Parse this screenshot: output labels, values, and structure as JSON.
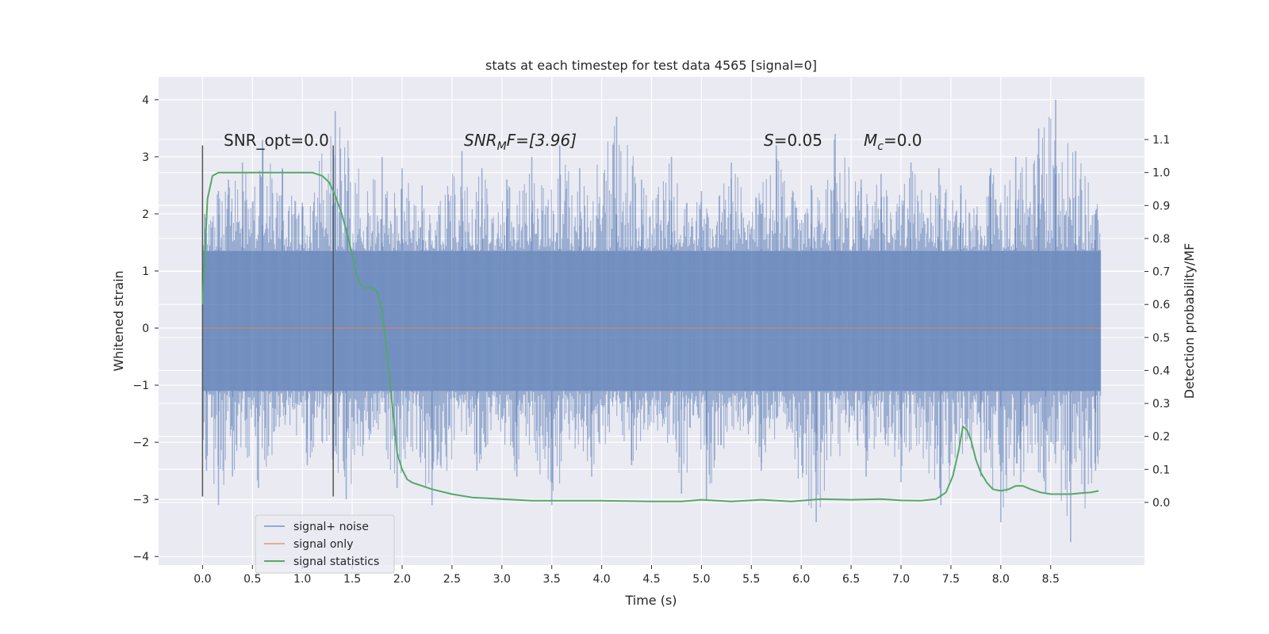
{
  "chart_data": {
    "type": "line",
    "title": "stats at each timestep for test data 4565 [signal=0]",
    "xlabel": "Time (s)",
    "ylabel": "Whitened strain",
    "y2label": "Detection probability/MF",
    "xlim": [
      -0.44,
      9.44
    ],
    "ylim": [
      -4.15,
      4.4
    ],
    "y2lim": [
      -0.19,
      1.29
    ],
    "xticks": [
      "0.0",
      "0.5",
      "1.0",
      "1.5",
      "2.0",
      "2.5",
      "3.0",
      "3.5",
      "4.0",
      "4.5",
      "5.0",
      "5.5",
      "6.0",
      "6.5",
      "7.0",
      "7.5",
      "8.0",
      "8.5"
    ],
    "yticks": [
      "4",
      "3",
      "2",
      "1",
      "0",
      "−1",
      "−2",
      "−3",
      "−4"
    ],
    "y2ticks": [
      "1.1",
      "1.0",
      "0.9",
      "0.8",
      "0.7",
      "0.6",
      "0.5",
      "0.4",
      "0.3",
      "0.2",
      "0.1",
      "0.0"
    ],
    "grid": true,
    "legend_placement": "lower-left",
    "legend": [
      "signal+ noise",
      "signal only",
      "signal statistics"
    ],
    "colors": {
      "plot_background": "#eaeaf2",
      "grid": "#ffffff",
      "noise": "#4c72b0",
      "signal": "#dd8452",
      "statistics": "#55a868",
      "markers": "#555555"
    },
    "annotations": {
      "snr_opt": "SNR_opt=0.0",
      "snr_mf_sym": "SNR",
      "snr_mf_sub": "M",
      "snr_mf_rest": "F=[3.96]",
      "s_sym": "S",
      "s_rest": "=0.05",
      "mc_sym": "M",
      "mc_sub": "c",
      "mc_rest": "=0.0"
    },
    "vertical_markers": {
      "x": [
        0.0,
        1.31
      ],
      "range": [
        -2.95,
        3.2
      ]
    },
    "series": [
      {
        "name": "signal+ noise",
        "x_range": [
          0.0,
          9.0
        ],
        "core_band": [
          -1.1,
          1.35
        ],
        "spike_peaks": [
          [
            0.02,
            2.0
          ],
          [
            0.16,
            2.4
          ],
          [
            0.26,
            2.6
          ],
          [
            0.4,
            2.9
          ],
          [
            0.6,
            3.3
          ],
          [
            0.8,
            2.8
          ],
          [
            1.0,
            2.2
          ],
          [
            1.33,
            3.8
          ],
          [
            1.45,
            2.4
          ],
          [
            1.8,
            3.0
          ],
          [
            2.0,
            2.8
          ],
          [
            2.2,
            2.5
          ],
          [
            2.6,
            3.1
          ],
          [
            2.8,
            2.8
          ],
          [
            3.05,
            2.6
          ],
          [
            3.3,
            3.0
          ],
          [
            3.58,
            3.2
          ],
          [
            3.78,
            2.8
          ],
          [
            4.15,
            3.7
          ],
          [
            4.4,
            2.6
          ],
          [
            4.7,
            3.0
          ],
          [
            5.0,
            2.4
          ],
          [
            5.3,
            2.9
          ],
          [
            5.6,
            2.0
          ],
          [
            5.75,
            3.2
          ],
          [
            6.1,
            2.5
          ],
          [
            6.34,
            3.4
          ],
          [
            6.6,
            2.6
          ],
          [
            6.8,
            2.7
          ],
          [
            7.1,
            2.9
          ],
          [
            7.38,
            2.8
          ],
          [
            7.6,
            2.5
          ],
          [
            7.9,
            2.8
          ],
          [
            8.15,
            3.0
          ],
          [
            8.38,
            3.5
          ],
          [
            8.55,
            4.0
          ],
          [
            8.75,
            3.1
          ],
          [
            8.95,
            2.0
          ]
        ],
        "spike_troughs": [
          [
            0.04,
            -2.5
          ],
          [
            0.16,
            -3.1
          ],
          [
            0.3,
            -2.6
          ],
          [
            0.56,
            -2.8
          ],
          [
            1.05,
            -2.4
          ],
          [
            1.44,
            -3.0
          ],
          [
            1.95,
            -2.8
          ],
          [
            2.3,
            -3.1
          ],
          [
            2.75,
            -2.5
          ],
          [
            3.15,
            -2.6
          ],
          [
            3.5,
            -3.1
          ],
          [
            3.9,
            -2.6
          ],
          [
            4.3,
            -2.4
          ],
          [
            4.8,
            -2.9
          ],
          [
            5.05,
            -3.0
          ],
          [
            5.6,
            -2.5
          ],
          [
            6.15,
            -3.4
          ],
          [
            6.65,
            -2.6
          ],
          [
            7.0,
            -2.7
          ],
          [
            7.4,
            -3.1
          ],
          [
            7.8,
            -2.6
          ],
          [
            8.0,
            -3.4
          ],
          [
            8.2,
            -2.7
          ],
          [
            8.45,
            -2.9
          ],
          [
            8.7,
            -3.75
          ],
          [
            8.95,
            -2.5
          ]
        ]
      },
      {
        "name": "signal only",
        "x": [
          0.0,
          9.0
        ],
        "y": [
          0.0,
          0.0
        ]
      },
      {
        "name": "signal statistics",
        "axis": "right",
        "x": [
          0.0,
          0.05,
          0.1,
          0.16,
          0.25,
          0.4,
          0.6,
          0.8,
          1.0,
          1.1,
          1.2,
          1.27,
          1.33,
          1.4,
          1.47,
          1.52,
          1.56,
          1.62,
          1.7,
          1.75,
          1.8,
          1.85,
          1.9,
          1.95,
          2.0,
          2.05,
          2.1,
          2.15,
          2.2,
          2.3,
          2.5,
          2.7,
          3.0,
          3.3,
          3.5,
          4.0,
          4.5,
          4.8,
          5.0,
          5.3,
          5.6,
          5.9,
          6.2,
          6.5,
          6.8,
          7.0,
          7.2,
          7.35,
          7.45,
          7.52,
          7.58,
          7.62,
          7.66,
          7.7,
          7.75,
          7.8,
          7.86,
          7.92,
          8.0,
          8.08,
          8.15,
          8.22,
          8.3,
          8.4,
          8.5,
          8.6,
          8.7,
          8.8,
          8.9,
          8.98
        ],
        "y": [
          0.6,
          0.92,
          0.99,
          1.0,
          1.0,
          1.0,
          1.0,
          1.0,
          1.0,
          1.0,
          0.99,
          0.97,
          0.93,
          0.87,
          0.79,
          0.72,
          0.67,
          0.65,
          0.65,
          0.64,
          0.58,
          0.45,
          0.3,
          0.15,
          0.1,
          0.07,
          0.06,
          0.055,
          0.05,
          0.04,
          0.025,
          0.015,
          0.01,
          0.005,
          0.005,
          0.005,
          0.003,
          0.003,
          0.008,
          0.003,
          0.008,
          0.003,
          0.01,
          0.008,
          0.01,
          0.006,
          0.005,
          0.01,
          0.03,
          0.08,
          0.16,
          0.23,
          0.22,
          0.19,
          0.13,
          0.09,
          0.06,
          0.04,
          0.035,
          0.04,
          0.05,
          0.05,
          0.04,
          0.03,
          0.025,
          0.025,
          0.025,
          0.028,
          0.03,
          0.035
        ]
      }
    ]
  }
}
